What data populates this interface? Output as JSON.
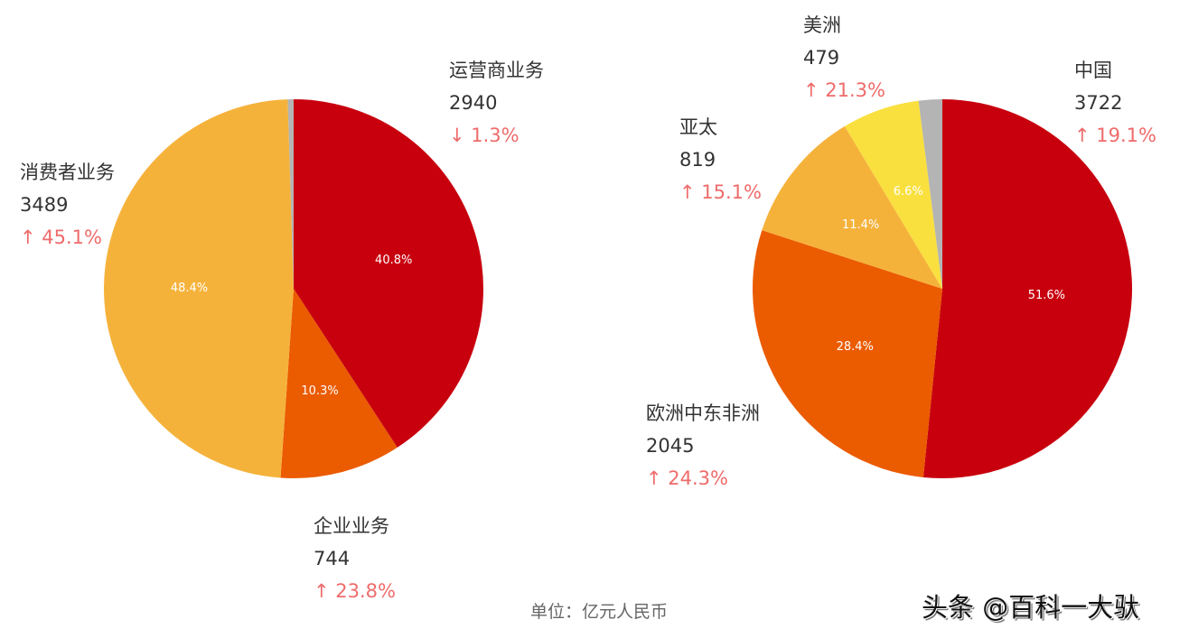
{
  "chart_data": [
    {
      "type": "pie",
      "start": "top",
      "direction": "clockwise",
      "slices": [
        {
          "label": "运营商业务",
          "value": 2940,
          "percent": 40.8,
          "change": "↓ 1.3%",
          "color": "#c8000e"
        },
        {
          "label": "企业业务",
          "value": 744,
          "percent": 10.3,
          "change": "↑ 23.8%",
          "color": "#eb5b00"
        },
        {
          "label": "消费者业务",
          "value": 3489,
          "percent": 48.4,
          "change": "↑ 45.1%",
          "color": "#f5b23b"
        },
        {
          "label": "",
          "percent": 0.5,
          "color": "#b4b4b4"
        }
      ]
    },
    {
      "type": "pie",
      "start": "top",
      "direction": "clockwise",
      "slices": [
        {
          "label": "中国",
          "value": 3722,
          "percent": 51.6,
          "change": "↑ 19.1%",
          "color": "#c8000e"
        },
        {
          "label": "欧洲中东非洲",
          "value": 2045,
          "percent": 28.4,
          "change": "↑ 24.3%",
          "color": "#eb5b00"
        },
        {
          "label": "亚太",
          "value": 819,
          "percent": 11.4,
          "change": "↑ 15.1%",
          "color": "#f5b23b"
        },
        {
          "label": "美洲",
          "value": 479,
          "percent": 6.6,
          "change": "↑ 21.3%",
          "color": "#f9e03f"
        },
        {
          "label": "",
          "percent": 2.0,
          "color": "#b4b4b4"
        }
      ]
    }
  ],
  "unit": "单位：亿元人民币",
  "watermark": "头条 @百科一大驮"
}
